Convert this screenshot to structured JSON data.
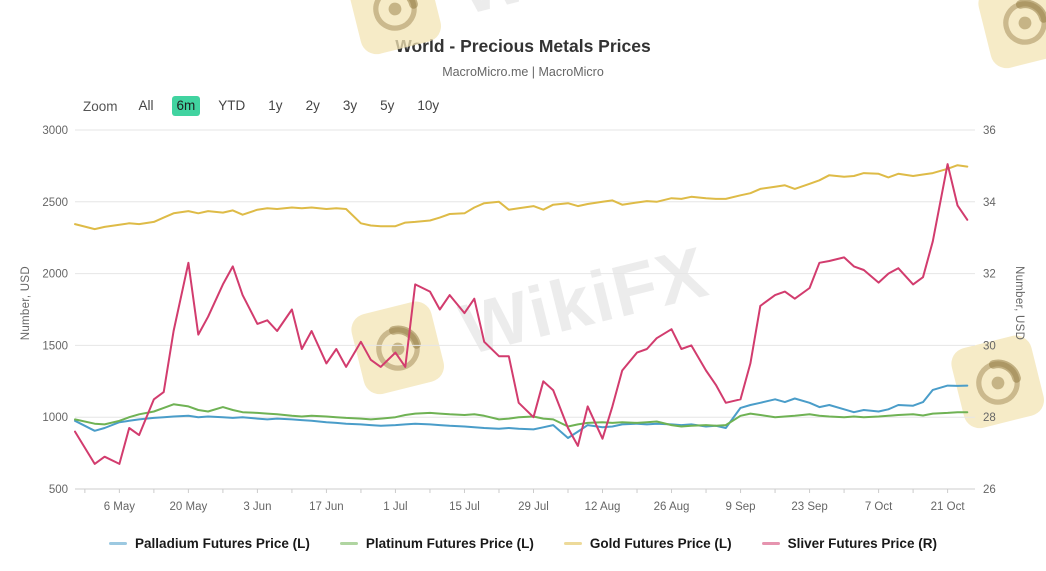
{
  "header": {
    "title": "World - Precious Metals Prices",
    "subtitle": "MacroMicro.me | MacroMicro"
  },
  "zoom_bar": {
    "label": "Zoom",
    "options": [
      "All",
      "6m",
      "YTD",
      "1y",
      "2y",
      "3y",
      "5y",
      "10y"
    ],
    "active": "6m",
    "active_color": "#41d3a0"
  },
  "watermark": {
    "text": "WikiFX"
  },
  "colors": {
    "gridline": "#e6e6e6",
    "axis_line": "#cccccc",
    "tick_label": "#666666",
    "title": "#333333",
    "subtitle": "#666666"
  },
  "chart_data": {
    "type": "line",
    "title": "World - Precious Metals Prices",
    "grid": true,
    "legend_position": "bottom",
    "left_axis": {
      "label": "Number, USD",
      "range": [
        500,
        3000
      ],
      "ticks": [
        3000,
        2500,
        2000,
        1500,
        1000,
        500
      ]
    },
    "right_axis": {
      "label": "Number, USD",
      "range": [
        26,
        36
      ],
      "ticks": [
        36,
        34,
        32,
        30,
        28,
        26
      ]
    },
    "x_tick_labels": [
      "6 May",
      "20 May",
      "3 Jun",
      "17 Jun",
      "1 Jul",
      "15 Jul",
      "29 Jul",
      "12 Aug",
      "26 Aug",
      "9 Sep",
      "23 Sep",
      "7 Oct",
      "21 Oct"
    ],
    "x_tick_days": [
      9,
      23,
      37,
      51,
      65,
      79,
      93,
      107,
      121,
      135,
      149,
      163,
      177
    ],
    "x_dates": [
      "Apr 27",
      "May 1",
      "May 3",
      "May 6",
      "May 8",
      "May 10",
      "May 13",
      "May 15",
      "May 17",
      "May 20",
      "May 22",
      "May 24",
      "May 27",
      "May 29",
      "May 31",
      "Jun 3",
      "Jun 5",
      "Jun 7",
      "Jun 10",
      "Jun 12",
      "Jun 14",
      "Jun 17",
      "Jun 19",
      "Jun 21",
      "Jun 24",
      "Jun 26",
      "Jun 28",
      "Jul 1",
      "Jul 3",
      "Jul 5",
      "Jul 8",
      "Jul 10",
      "Jul 12",
      "Jul 15",
      "Jul 17",
      "Jul 19",
      "Jul 22",
      "Jul 24",
      "Jul 26",
      "Jul 29",
      "Jul 31",
      "Aug 2",
      "Aug 5",
      "Aug 7",
      "Aug 9",
      "Aug 12",
      "Aug 14",
      "Aug 16",
      "Aug 19",
      "Aug 21",
      "Aug 23",
      "Aug 26",
      "Aug 28",
      "Aug 30",
      "Sep 2",
      "Sep 4",
      "Sep 6",
      "Sep 9",
      "Sep 11",
      "Sep 13",
      "Sep 16",
      "Sep 18",
      "Sep 20",
      "Sep 23",
      "Sep 25",
      "Sep 27",
      "Sep 30",
      "Oct 2",
      "Oct 4",
      "Oct 7",
      "Oct 9",
      "Oct 11",
      "Oct 14",
      "Oct 16",
      "Oct 18",
      "Oct 21",
      "Oct 23",
      "Oct 25"
    ],
    "x_days": [
      0,
      4,
      6,
      9,
      11,
      13,
      16,
      18,
      20,
      23,
      25,
      27,
      30,
      32,
      34,
      37,
      39,
      41,
      44,
      46,
      48,
      51,
      53,
      55,
      58,
      60,
      62,
      65,
      67,
      69,
      72,
      74,
      76,
      79,
      81,
      83,
      86,
      88,
      90,
      93,
      95,
      97,
      100,
      102,
      104,
      107,
      109,
      111,
      114,
      116,
      118,
      121,
      123,
      125,
      128,
      130,
      132,
      135,
      137,
      139,
      142,
      144,
      146,
      149,
      151,
      153,
      156,
      158,
      160,
      163,
      165,
      167,
      170,
      172,
      174,
      177,
      179,
      181
    ],
    "series": [
      {
        "name": "Palladium Futures Price (L)",
        "axis": "left",
        "color": "#4a9dc9",
        "values": [
          975,
          905,
          925,
          965,
          975,
          985,
          995,
          1000,
          1005,
          1010,
          1000,
          1005,
          1000,
          995,
          1000,
          990,
          985,
          990,
          985,
          980,
          975,
          965,
          960,
          955,
          950,
          945,
          940,
          945,
          950,
          955,
          950,
          945,
          940,
          935,
          930,
          925,
          920,
          925,
          920,
          915,
          930,
          945,
          855,
          900,
          945,
          930,
          935,
          950,
          955,
          950,
          955,
          950,
          945,
          950,
          935,
          940,
          925,
          1065,
          1085,
          1100,
          1125,
          1105,
          1130,
          1100,
          1070,
          1085,
          1055,
          1035,
          1050,
          1040,
          1055,
          1085,
          1080,
          1105,
          1190,
          1220,
          1218,
          1220
        ]
      },
      {
        "name": "Platinum Futures Price (L)",
        "axis": "left",
        "color": "#6fb254",
        "values": [
          985,
          955,
          950,
          975,
          1000,
          1020,
          1040,
          1065,
          1090,
          1075,
          1050,
          1040,
          1070,
          1050,
          1035,
          1030,
          1025,
          1020,
          1010,
          1005,
          1010,
          1005,
          1000,
          995,
          990,
          985,
          990,
          1000,
          1015,
          1025,
          1030,
          1025,
          1020,
          1015,
          1020,
          1010,
          985,
          990,
          1000,
          1005,
          990,
          985,
          935,
          950,
          960,
          965,
          960,
          965,
          960,
          965,
          970,
          945,
          935,
          940,
          945,
          940,
          945,
          1010,
          1025,
          1015,
          1000,
          1005,
          1010,
          1020,
          1010,
          1005,
          1000,
          1005,
          1000,
          1005,
          1010,
          1015,
          1020,
          1012,
          1025,
          1030,
          1035,
          1035
        ]
      },
      {
        "name": "Gold Futures Price (L)",
        "axis": "left",
        "color": "#debb47",
        "values": [
          2345,
          2310,
          2325,
          2340,
          2350,
          2345,
          2360,
          2390,
          2420,
          2435,
          2420,
          2435,
          2425,
          2440,
          2410,
          2445,
          2455,
          2450,
          2460,
          2455,
          2460,
          2450,
          2455,
          2450,
          2350,
          2335,
          2330,
          2330,
          2355,
          2360,
          2370,
          2390,
          2415,
          2420,
          2460,
          2490,
          2500,
          2445,
          2455,
          2470,
          2445,
          2480,
          2490,
          2470,
          2485,
          2500,
          2510,
          2480,
          2495,
          2505,
          2500,
          2525,
          2520,
          2535,
          2525,
          2520,
          2520,
          2545,
          2560,
          2590,
          2605,
          2615,
          2590,
          2625,
          2650,
          2685,
          2675,
          2680,
          2700,
          2695,
          2670,
          2695,
          2680,
          2690,
          2700,
          2730,
          2755,
          2745
        ]
      },
      {
        "name": "Sliver Futures Price (R)",
        "axis": "right",
        "color": "#d23c6e",
        "values": [
          27.6,
          26.7,
          26.9,
          26.7,
          27.7,
          27.5,
          28.5,
          28.7,
          30.4,
          32.3,
          30.3,
          30.8,
          31.7,
          32.2,
          31.4,
          30.6,
          30.7,
          30.4,
          31.0,
          29.9,
          30.4,
          29.5,
          29.9,
          29.4,
          30.1,
          29.6,
          29.4,
          29.8,
          29.4,
          31.7,
          31.5,
          31.0,
          31.4,
          30.9,
          31.3,
          30.1,
          29.7,
          29.7,
          28.4,
          28.0,
          29.0,
          28.75,
          27.7,
          27.2,
          28.3,
          27.4,
          28.3,
          29.3,
          29.8,
          29.9,
          30.2,
          30.45,
          29.9,
          30.0,
          29.3,
          28.9,
          28.4,
          28.5,
          29.5,
          31.1,
          31.4,
          31.5,
          31.3,
          31.6,
          32.3,
          32.35,
          32.45,
          32.2,
          32.1,
          31.75,
          32.0,
          32.15,
          31.7,
          31.9,
          32.9,
          35.05,
          33.9,
          33.5
        ]
      }
    ]
  }
}
